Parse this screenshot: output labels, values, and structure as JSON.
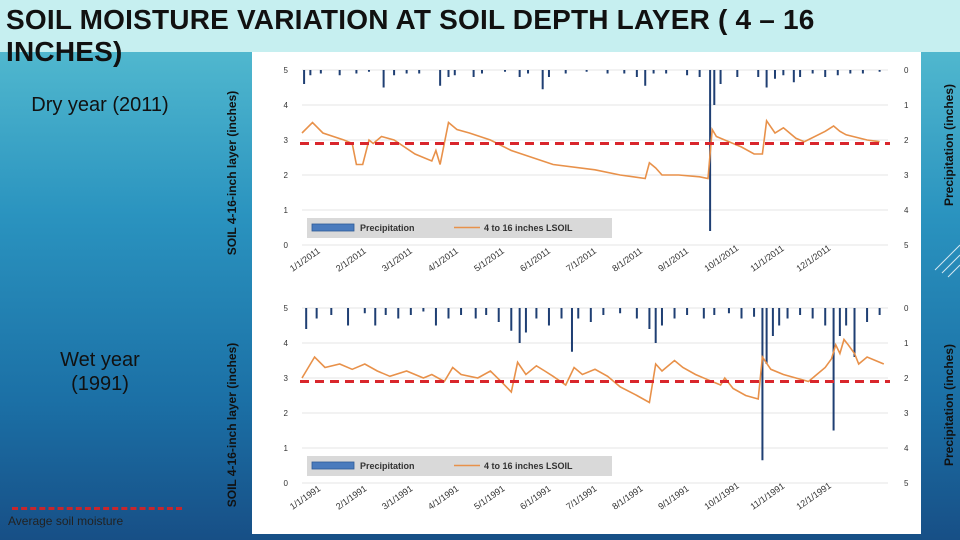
{
  "title": "SOIL MOISTURE VARIATION AT SOIL DEPTH LAYER ( 4 – 16 INCHES)",
  "labels": {
    "dry_year": "Dry year (2011)",
    "wet_year": "Wet year (1991)",
    "average_soil_moisture": "Average soil moisture",
    "left_axis": "SOIL 4-16-inch layer (inches)",
    "right_axis": "Precipitation (inches)"
  },
  "colors": {
    "precip": "#1f3f73",
    "soil_line": "#e8914a",
    "average": "#d9262c"
  },
  "chart_data": [
    {
      "type": "bar+line",
      "id": "dry-2011",
      "categories": [
        "1/1/2011",
        "2/1/2011",
        "3/1/2011",
        "4/1/2011",
        "5/1/2011",
        "6/1/2011",
        "7/1/2011",
        "8/1/2011",
        "9/1/2011",
        "10/1/2011",
        "11/1/2011",
        "12/1/2011"
      ],
      "ylabel": "SOIL 4-16-inch layer (inches)",
      "y2label": "Precipitation (inches)",
      "ylim": [
        0,
        5
      ],
      "y_ticks": [
        "0",
        "1",
        "2",
        "3",
        "4",
        "5"
      ],
      "y2lim": [
        0,
        5
      ],
      "y2_ticks": [
        "0",
        "1",
        "2",
        "3",
        "4",
        "5"
      ],
      "y2_inverted": true,
      "average_line": 2.9,
      "legend": [
        "Precipitation",
        "4 to 16 inches LSOIL"
      ],
      "soil": [
        [
          0,
          3.2
        ],
        [
          0.25,
          3.5
        ],
        [
          0.5,
          3.2
        ],
        [
          1,
          3.0
        ],
        [
          1.2,
          2.9
        ],
        [
          1.3,
          2.3
        ],
        [
          1.45,
          2.3
        ],
        [
          1.6,
          3.0
        ],
        [
          1.7,
          2.9
        ],
        [
          1.9,
          3.1
        ],
        [
          2.2,
          3.0
        ],
        [
          2.7,
          2.6
        ],
        [
          3.1,
          2.4
        ],
        [
          3.2,
          2.7
        ],
        [
          3.3,
          2.3
        ],
        [
          3.4,
          2.9
        ],
        [
          3.5,
          3.5
        ],
        [
          3.7,
          3.3
        ],
        [
          4.0,
          3.2
        ],
        [
          4.5,
          3.0
        ],
        [
          5.0,
          2.7
        ],
        [
          5.5,
          2.5
        ],
        [
          6.0,
          2.3
        ],
        [
          7.0,
          2.15
        ],
        [
          7.6,
          2.0
        ],
        [
          8.2,
          1.9
        ],
        [
          8.3,
          2.35
        ],
        [
          8.45,
          2.2
        ],
        [
          8.6,
          2.0
        ],
        [
          9.0,
          2.0
        ],
        [
          9.5,
          1.95
        ],
        [
          9.7,
          1.9
        ],
        [
          9.8,
          3.3
        ],
        [
          9.9,
          3.1
        ],
        [
          10.2,
          2.95
        ],
        [
          10.5,
          2.8
        ],
        [
          10.8,
          2.6
        ],
        [
          11.0,
          2.6
        ],
        [
          11.1,
          3.55
        ],
        [
          11.3,
          3.2
        ],
        [
          11.5,
          3.35
        ],
        [
          11.8,
          3.05
        ],
        [
          12.0,
          2.95
        ],
        [
          12.5,
          3.25
        ],
        [
          12.7,
          3.4
        ],
        [
          12.85,
          3.25
        ],
        [
          13.0,
          3.15
        ],
        [
          13.5,
          3.0
        ],
        [
          13.8,
          2.95
        ]
      ],
      "precip": [
        [
          0.05,
          0.4
        ],
        [
          0.2,
          0.15
        ],
        [
          0.45,
          0.1
        ],
        [
          0.9,
          0.15
        ],
        [
          1.3,
          0.1
        ],
        [
          1.6,
          0.05
        ],
        [
          1.95,
          0.5
        ],
        [
          2.2,
          0.15
        ],
        [
          2.5,
          0.1
        ],
        [
          2.8,
          0.1
        ],
        [
          3.3,
          0.45
        ],
        [
          3.5,
          0.2
        ],
        [
          3.65,
          0.15
        ],
        [
          4.1,
          0.2
        ],
        [
          4.3,
          0.1
        ],
        [
          4.85,
          0.05
        ],
        [
          5.2,
          0.2
        ],
        [
          5.4,
          0.1
        ],
        [
          5.75,
          0.55
        ],
        [
          5.9,
          0.2
        ],
        [
          6.3,
          0.1
        ],
        [
          6.8,
          0.05
        ],
        [
          7.3,
          0.1
        ],
        [
          7.7,
          0.1
        ],
        [
          8.0,
          0.2
        ],
        [
          8.2,
          0.45
        ],
        [
          8.4,
          0.1
        ],
        [
          8.7,
          0.1
        ],
        [
          9.2,
          0.15
        ],
        [
          9.5,
          0.2
        ],
        [
          9.75,
          4.6
        ],
        [
          9.85,
          1.0
        ],
        [
          10.0,
          0.4
        ],
        [
          10.4,
          0.2
        ],
        [
          10.9,
          0.2
        ],
        [
          11.1,
          0.5
        ],
        [
          11.3,
          0.25
        ],
        [
          11.5,
          0.15
        ],
        [
          11.75,
          0.35
        ],
        [
          11.9,
          0.2
        ],
        [
          12.2,
          0.1
        ],
        [
          12.5,
          0.2
        ],
        [
          12.8,
          0.15
        ],
        [
          13.1,
          0.1
        ],
        [
          13.4,
          0.1
        ],
        [
          13.8,
          0.05
        ]
      ]
    },
    {
      "type": "bar+line",
      "id": "wet-1991",
      "categories": [
        "1/1/1991",
        "2/1/1991",
        "3/1/1991",
        "4/1/1991",
        "5/1/1991",
        "6/1/1991",
        "7/1/1991",
        "8/1/1991",
        "9/1/1991",
        "10/1/1991",
        "11/1/1991",
        "12/1/1991"
      ],
      "ylabel": "SOIL 4-16-inch layer (inches)",
      "y2label": "Precipitation (inches)",
      "ylim": [
        0,
        5
      ],
      "y_ticks": [
        "0",
        "1",
        "2",
        "3",
        "4",
        "5"
      ],
      "y2lim": [
        0,
        5
      ],
      "y2_ticks": [
        "0",
        "1",
        "2",
        "3",
        "4",
        "5"
      ],
      "y2_inverted": true,
      "average_line": 2.9,
      "legend": [
        "Precipitation",
        "4 to 16 inches LSOIL"
      ],
      "soil": [
        [
          0,
          3.0
        ],
        [
          0.3,
          3.6
        ],
        [
          0.55,
          3.3
        ],
        [
          0.9,
          3.4
        ],
        [
          1.2,
          3.25
        ],
        [
          1.5,
          3.4
        ],
        [
          1.8,
          3.2
        ],
        [
          2.1,
          3.05
        ],
        [
          2.5,
          3.2
        ],
        [
          2.9,
          3.0
        ],
        [
          3.1,
          3.1
        ],
        [
          3.4,
          2.9
        ],
        [
          3.6,
          3.3
        ],
        [
          3.8,
          3.1
        ],
        [
          4.2,
          3.0
        ],
        [
          4.5,
          3.2
        ],
        [
          4.8,
          2.85
        ],
        [
          5.0,
          2.6
        ],
        [
          5.15,
          3.45
        ],
        [
          5.35,
          3.1
        ],
        [
          5.6,
          3.35
        ],
        [
          5.8,
          3.2
        ],
        [
          6.0,
          3.05
        ],
        [
          6.3,
          2.8
        ],
        [
          6.5,
          3.3
        ],
        [
          6.7,
          3.1
        ],
        [
          7.0,
          3.25
        ],
        [
          7.3,
          3.05
        ],
        [
          7.6,
          2.75
        ],
        [
          8.0,
          2.5
        ],
        [
          8.3,
          2.3
        ],
        [
          8.45,
          3.4
        ],
        [
          8.6,
          3.2
        ],
        [
          8.9,
          3.5
        ],
        [
          9.1,
          3.3
        ],
        [
          9.4,
          3.1
        ],
        [
          9.7,
          2.95
        ],
        [
          10.0,
          2.8
        ],
        [
          10.1,
          3.0
        ],
        [
          10.3,
          2.7
        ],
        [
          10.6,
          2.5
        ],
        [
          10.9,
          2.4
        ],
        [
          11.0,
          3.6
        ],
        [
          11.2,
          3.25
        ],
        [
          11.5,
          3.1
        ],
        [
          11.8,
          3.0
        ],
        [
          12.1,
          2.9
        ],
        [
          12.3,
          3.1
        ],
        [
          12.5,
          3.3
        ],
        [
          12.65,
          3.55
        ],
        [
          12.75,
          3.95
        ],
        [
          12.85,
          3.7
        ],
        [
          12.95,
          4.1
        ],
        [
          13.05,
          3.95
        ],
        [
          13.2,
          3.7
        ],
        [
          13.3,
          3.4
        ],
        [
          13.5,
          3.6
        ],
        [
          13.7,
          3.5
        ],
        [
          13.9,
          3.4
        ]
      ],
      "precip": [
        [
          0.1,
          0.6
        ],
        [
          0.35,
          0.3
        ],
        [
          0.7,
          0.2
        ],
        [
          1.1,
          0.5
        ],
        [
          1.5,
          0.15
        ],
        [
          1.75,
          0.5
        ],
        [
          2.0,
          0.2
        ],
        [
          2.3,
          0.3
        ],
        [
          2.6,
          0.2
        ],
        [
          2.9,
          0.1
        ],
        [
          3.2,
          0.5
        ],
        [
          3.5,
          0.3
        ],
        [
          3.8,
          0.2
        ],
        [
          4.15,
          0.3
        ],
        [
          4.4,
          0.2
        ],
        [
          4.7,
          0.4
        ],
        [
          5.0,
          0.65
        ],
        [
          5.2,
          1.0
        ],
        [
          5.35,
          0.7
        ],
        [
          5.6,
          0.3
        ],
        [
          5.9,
          0.5
        ],
        [
          6.2,
          0.3
        ],
        [
          6.45,
          1.25
        ],
        [
          6.6,
          0.3
        ],
        [
          6.9,
          0.4
        ],
        [
          7.2,
          0.2
        ],
        [
          7.6,
          0.15
        ],
        [
          8.0,
          0.3
        ],
        [
          8.3,
          0.6
        ],
        [
          8.45,
          1.0
        ],
        [
          8.6,
          0.5
        ],
        [
          8.9,
          0.3
        ],
        [
          9.2,
          0.2
        ],
        [
          9.6,
          0.3
        ],
        [
          9.85,
          0.2
        ],
        [
          10.2,
          0.15
        ],
        [
          10.5,
          0.3
        ],
        [
          10.8,
          0.25
        ],
        [
          11.0,
          4.35
        ],
        [
          11.1,
          1.6
        ],
        [
          11.25,
          0.8
        ],
        [
          11.4,
          0.5
        ],
        [
          11.6,
          0.3
        ],
        [
          11.9,
          0.2
        ],
        [
          12.2,
          0.3
        ],
        [
          12.5,
          0.5
        ],
        [
          12.7,
          3.5
        ],
        [
          12.85,
          0.8
        ],
        [
          13.0,
          0.5
        ],
        [
          13.2,
          1.4
        ],
        [
          13.5,
          0.4
        ],
        [
          13.8,
          0.2
        ]
      ]
    }
  ]
}
